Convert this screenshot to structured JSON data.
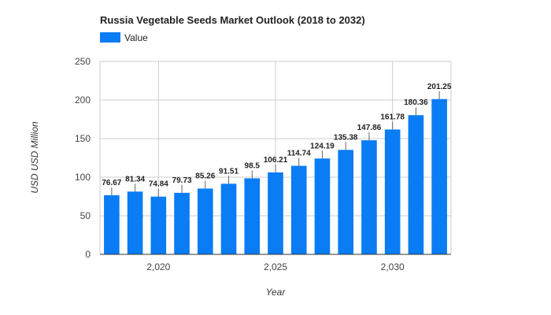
{
  "chart_data": {
    "type": "bar",
    "title": "Russia Vegetable Seeds Market Outlook (2018 to 2032)",
    "xlabel": "Year",
    "ylabel": "USD USD Million",
    "legend": {
      "position": "top-left",
      "entries": [
        "Value"
      ]
    },
    "x": [
      2018,
      2019,
      2020,
      2021,
      2022,
      2023,
      2024,
      2025,
      2026,
      2027,
      2028,
      2029,
      2030,
      2031,
      2032
    ],
    "series": [
      {
        "name": "Value",
        "color": "#0a7cf4",
        "values": [
          76.67,
          81.34,
          74.84,
          79.73,
          85.26,
          91.51,
          98.5,
          106.21,
          114.74,
          124.19,
          135.38,
          147.86,
          161.78,
          180.36,
          201.25
        ]
      }
    ],
    "ylim": [
      0,
      250
    ],
    "yticks": [
      0,
      50,
      100,
      150,
      200,
      250
    ],
    "ytick_labels": [
      "0",
      "50",
      "100",
      "150",
      "200",
      "250"
    ],
    "xticks": [
      2020,
      2025,
      2030
    ],
    "xtick_labels": [
      "2,020",
      "2,025",
      "2,030"
    ],
    "grid": true
  }
}
